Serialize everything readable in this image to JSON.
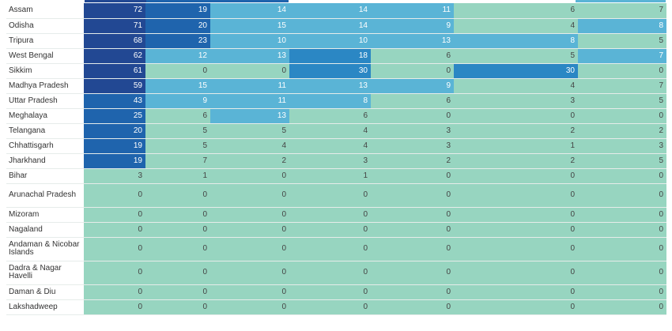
{
  "colors": {
    "level0": "#97d5c0",
    "level1": "#5ab4d6",
    "level2": "#2b87c4",
    "level3": "#1f64ad",
    "level4": "#224893"
  },
  "rows": [
    {
      "state": "Assam",
      "values": [
        "72",
        "19",
        "14",
        "14",
        "11",
        "6",
        "7"
      ],
      "levels": [
        4,
        3,
        1,
        1,
        1,
        0,
        0
      ]
    },
    {
      "state": "Odisha",
      "values": [
        "71",
        "20",
        "15",
        "14",
        "9",
        "4",
        "8"
      ],
      "levels": [
        4,
        3,
        1,
        1,
        1,
        0,
        1
      ]
    },
    {
      "state": "Tripura",
      "values": [
        "68",
        "23",
        "10",
        "10",
        "13",
        "8",
        "5"
      ],
      "levels": [
        4,
        3,
        1,
        1,
        1,
        1,
        0
      ]
    },
    {
      "state": "West Bengal",
      "values": [
        "62",
        "12",
        "13",
        "18",
        "6",
        "5",
        "7"
      ],
      "levels": [
        4,
        1,
        1,
        2,
        0,
        0,
        1
      ]
    },
    {
      "state": "Sikkim",
      "values": [
        "61",
        "0",
        "0",
        "30",
        "0",
        "30",
        "0"
      ],
      "levels": [
        4,
        0,
        0,
        2,
        0,
        2,
        0
      ]
    },
    {
      "state": "Madhya Pradesh",
      "values": [
        "59",
        "15",
        "11",
        "13",
        "9",
        "4",
        "7"
      ],
      "levels": [
        4,
        1,
        1,
        1,
        1,
        0,
        0
      ]
    },
    {
      "state": "Uttar Pradesh",
      "values": [
        "43",
        "9",
        "11",
        "8",
        "6",
        "3",
        "5"
      ],
      "levels": [
        3,
        1,
        1,
        1,
        0,
        0,
        0
      ]
    },
    {
      "state": "Meghalaya",
      "values": [
        "25",
        "6",
        "13",
        "6",
        "0",
        "0",
        "0"
      ],
      "levels": [
        3,
        0,
        1,
        0,
        0,
        0,
        0
      ]
    },
    {
      "state": "Telangana",
      "values": [
        "20",
        "5",
        "5",
        "4",
        "3",
        "2",
        "2"
      ],
      "levels": [
        3,
        0,
        0,
        0,
        0,
        0,
        0
      ]
    },
    {
      "state": "Chhattisgarh",
      "values": [
        "19",
        "5",
        "4",
        "4",
        "3",
        "1",
        "3"
      ],
      "levels": [
        3,
        0,
        0,
        0,
        0,
        0,
        0
      ]
    },
    {
      "state": "Jharkhand",
      "values": [
        "19",
        "7",
        "2",
        "3",
        "2",
        "2",
        "5"
      ],
      "levels": [
        3,
        0,
        0,
        0,
        0,
        0,
        0
      ]
    },
    {
      "state": "Bihar",
      "values": [
        "3",
        "1",
        "0",
        "1",
        "0",
        "0",
        "0"
      ],
      "levels": [
        0,
        0,
        0,
        0,
        0,
        0,
        0
      ]
    },
    {
      "state": "Arunachal Pradesh",
      "values": [
        "0",
        "0",
        "0",
        "0",
        "0",
        "0",
        "0"
      ],
      "levels": [
        0,
        0,
        0,
        0,
        0,
        0,
        0
      ],
      "tall": true
    },
    {
      "state": "Mizoram",
      "values": [
        "0",
        "0",
        "0",
        "0",
        "0",
        "0",
        "0"
      ],
      "levels": [
        0,
        0,
        0,
        0,
        0,
        0,
        0
      ]
    },
    {
      "state": "Nagaland",
      "values": [
        "0",
        "0",
        "0",
        "0",
        "0",
        "0",
        "0"
      ],
      "levels": [
        0,
        0,
        0,
        0,
        0,
        0,
        0
      ]
    },
    {
      "state": "Andaman & Nicobar Islands",
      "values": [
        "0",
        "0",
        "0",
        "0",
        "0",
        "0",
        "0"
      ],
      "levels": [
        0,
        0,
        0,
        0,
        0,
        0,
        0
      ],
      "tall": true
    },
    {
      "state": "Dadra & Nagar Havelli",
      "values": [
        "0",
        "0",
        "0",
        "0",
        "0",
        "0",
        "0"
      ],
      "levels": [
        0,
        0,
        0,
        0,
        0,
        0,
        0
      ],
      "tall": true
    },
    {
      "state": "Daman & Diu",
      "values": [
        "0",
        "0",
        "0",
        "0",
        "0",
        "0",
        "0"
      ],
      "levels": [
        0,
        0,
        0,
        0,
        0,
        0,
        0
      ]
    },
    {
      "state": "Lakshadweep",
      "values": [
        "0",
        "0",
        "0",
        "0",
        "0",
        "0",
        "0"
      ],
      "levels": [
        0,
        0,
        0,
        0,
        0,
        0,
        0
      ]
    }
  ]
}
